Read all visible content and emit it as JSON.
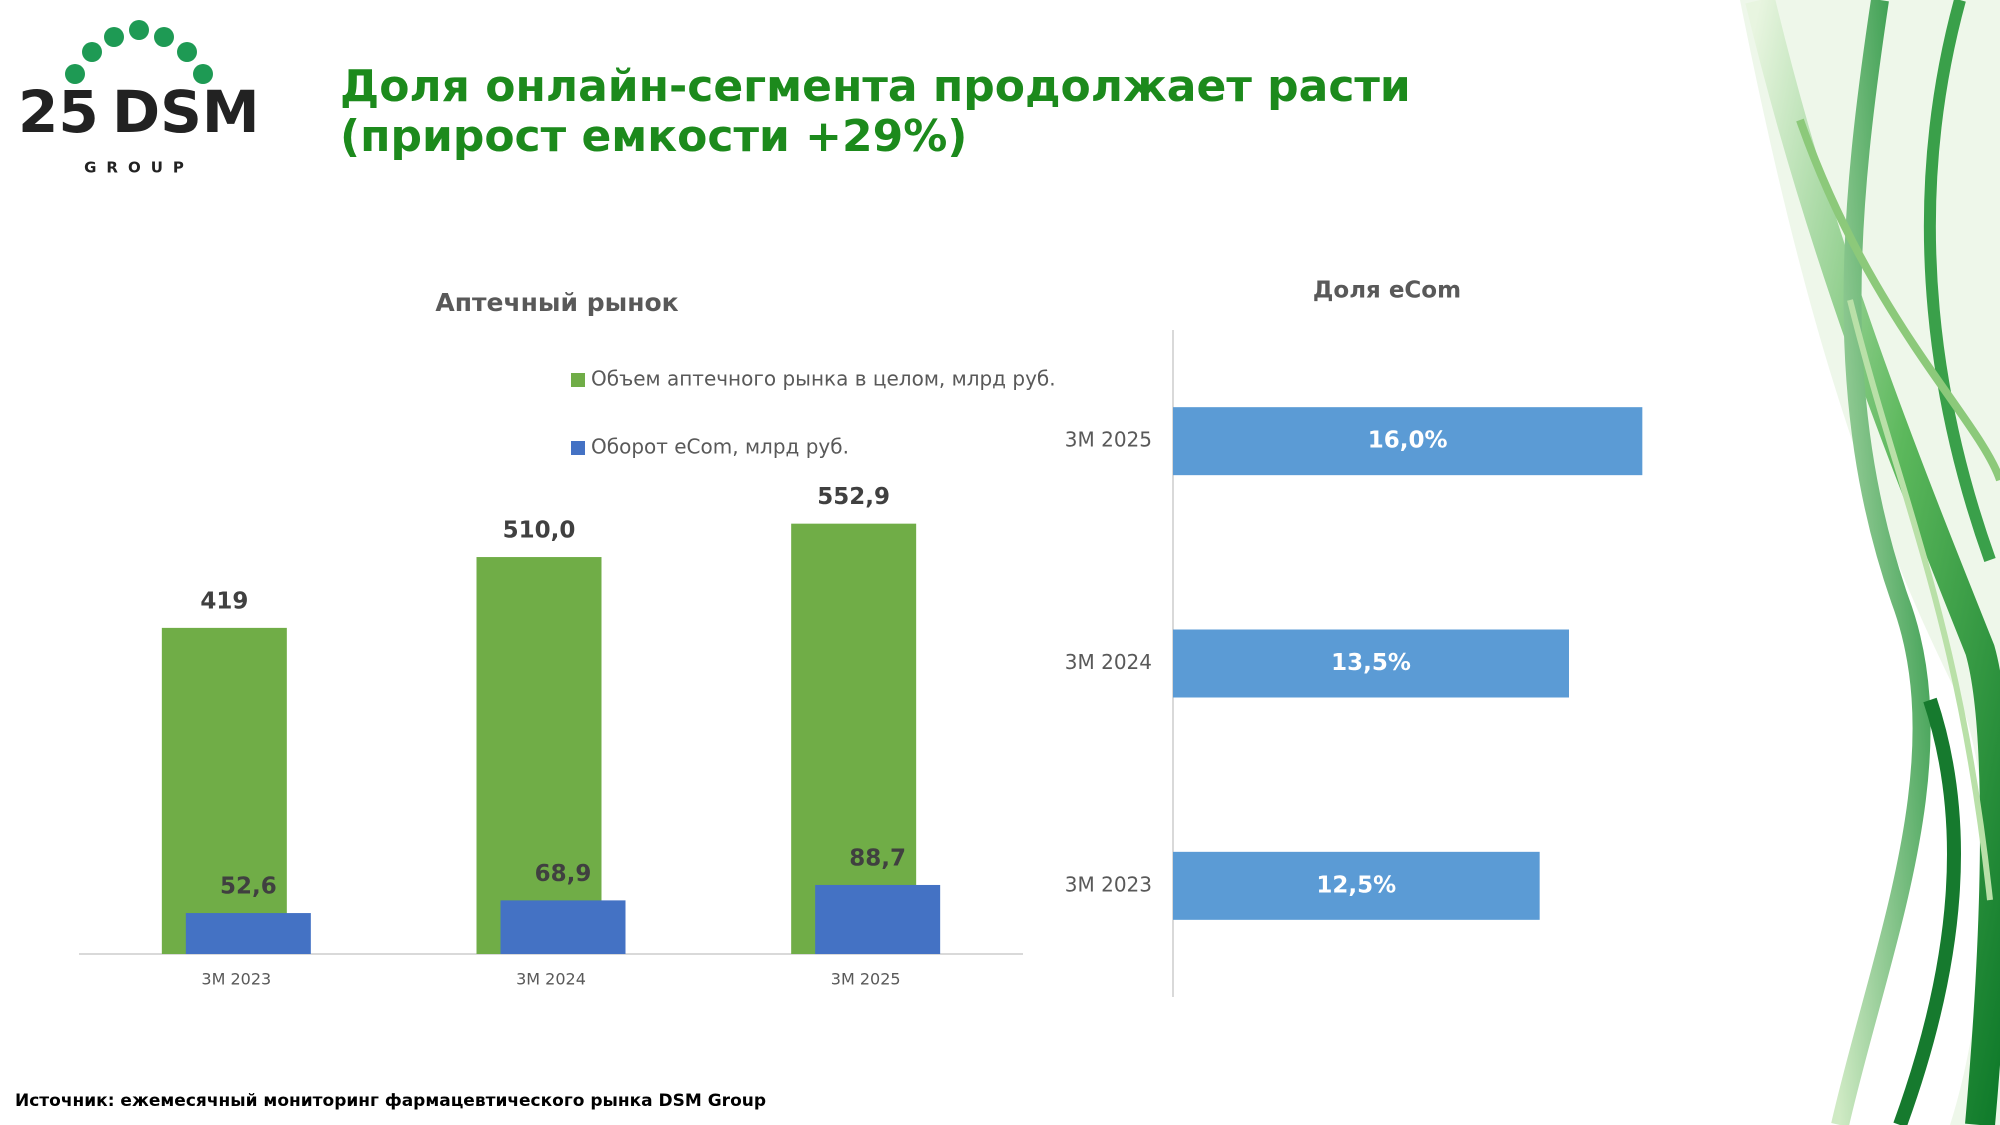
{
  "logo": {
    "number": "25",
    "name": "DSM",
    "sub": "GROUP"
  },
  "header": {
    "title_line1": "Доля онлайн-сегмента продолжает расти",
    "title_line2": "(прирост емкости +29%)"
  },
  "chart_data": [
    {
      "type": "bar",
      "title": "Аптечный рынок",
      "categories": [
        "3M 2023",
        "3M 2024",
        "3M 2025"
      ],
      "series": [
        {
          "name": "Объем аптечного рынка в целом, млрд руб.",
          "color": "#70ad47",
          "values": [
            419,
            510.0,
            552.9
          ],
          "value_labels": [
            "419",
            "510,0",
            "552,9"
          ]
        },
        {
          "name": "Оборот eCom, млрд руб.",
          "color": "#4472c4",
          "values": [
            52.6,
            68.9,
            88.7
          ],
          "value_labels": [
            "52,6",
            "68,9",
            "88,7"
          ]
        }
      ],
      "ylim": [
        0,
        600
      ]
    },
    {
      "type": "barh",
      "title": "Доля eCom",
      "categories": [
        "3M 2023",
        "3M 2024",
        "3M 2025"
      ],
      "values": [
        12.5,
        13.5,
        16.0
      ],
      "value_labels": [
        "12,5%",
        "13,5%",
        "16,0%"
      ],
      "color": "#5b9bd5",
      "xlim": [
        0,
        18
      ]
    }
  ],
  "footer": {
    "source": "Источник: ежемесячный мониторинг фармацевтического рынка DSM Group"
  }
}
